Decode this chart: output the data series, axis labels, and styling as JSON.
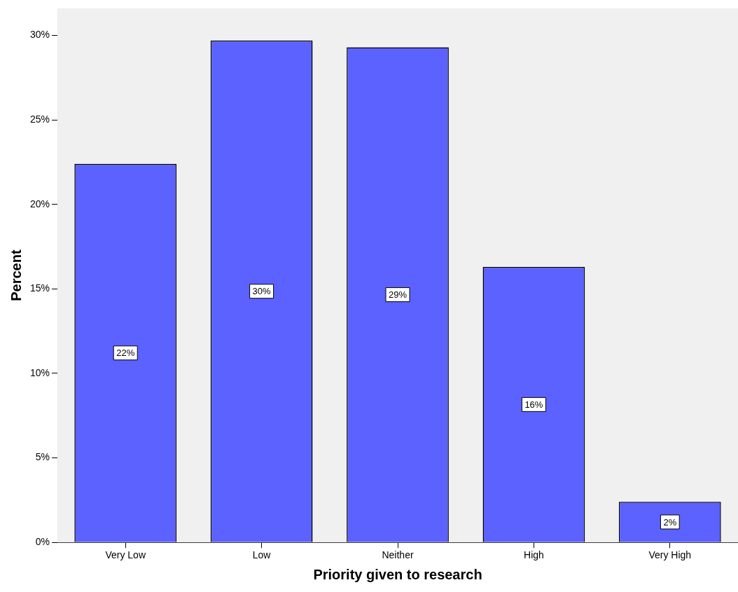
{
  "chart_data": {
    "type": "bar",
    "xlabel": "Priority given to research",
    "ylabel": "Percent",
    "categories": [
      "Very Low",
      "Low",
      "Neither",
      "High",
      "Very High"
    ],
    "values": [
      22.4,
      29.7,
      29.3,
      16.3,
      2.4
    ],
    "value_labels": [
      "22%",
      "30%",
      "29%",
      "16%",
      "2%"
    ],
    "color": "#5c62ff",
    "ylim": [
      0,
      31.6
    ],
    "yticks": [
      {
        "value": 0,
        "label": "0%"
      },
      {
        "value": 5,
        "label": "5%"
      },
      {
        "value": 10,
        "label": "10%"
      },
      {
        "value": 15,
        "label": "15%"
      },
      {
        "value": 20,
        "label": "20%"
      },
      {
        "value": 25,
        "label": "25%"
      },
      {
        "value": 30,
        "label": "30%"
      }
    ],
    "legend": false
  }
}
